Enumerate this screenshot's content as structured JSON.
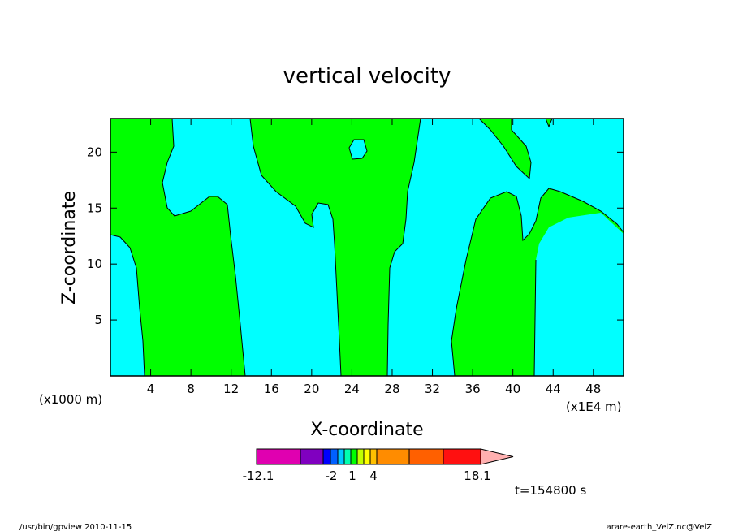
{
  "chart_data": {
    "type": "heatmap",
    "title": "vertical velocity",
    "xlabel": "X-coordinate",
    "ylabel": "Z-coordinate",
    "x_unit_left": "(x1000 m)",
    "x_unit_right": "(x1E4 m)",
    "xlim": [
      0,
      51
    ],
    "ylim": [
      0,
      23
    ],
    "xticks": [
      "4",
      "8",
      "12",
      "16",
      "20",
      "24",
      "28",
      "32",
      "36",
      "40",
      "44",
      "48"
    ],
    "yticks": [
      "5",
      "10",
      "15",
      "20"
    ],
    "fields": {
      "green": "#00ff00",
      "cyan": "#00ffff",
      "description_levels": "two visible shading classes: green and cyan"
    },
    "colorbar": {
      "min_label": "-12.1",
      "labels": [
        "-2",
        "1",
        "4"
      ],
      "max_label": "18.1",
      "colors": [
        "#e000b0",
        "#8000c0",
        "#0000ff",
        "#0060ff",
        "#00c8ff",
        "#00ffb0",
        "#00ff00",
        "#c0ff00",
        "#ffff00",
        "#ffc000",
        "#ff8c00",
        "#ff6000",
        "#ff1010",
        "#ff7070",
        "#ffb0b0"
      ]
    },
    "time_label": "t=154800 s"
  },
  "footer": {
    "left": "/usr/bin/gpview  2010-11-15",
    "right": "arare-earth_VelZ.nc@VelZ"
  }
}
